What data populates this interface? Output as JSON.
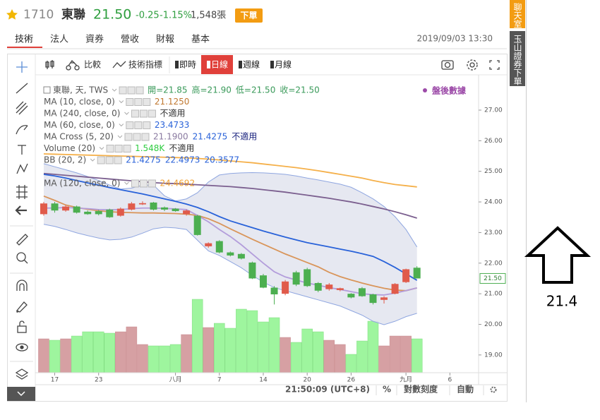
{
  "header": {
    "code": "1710",
    "name": "東聯",
    "price": "21.50",
    "change": "-0.25",
    "change_pct": "-1.15%",
    "volume": "1,548張",
    "order_button": "下單"
  },
  "tabs": [
    "技術",
    "法人",
    "資券",
    "營收",
    "財報",
    "基本"
  ],
  "timestamp": "2019/09/03 13:30",
  "toolbar": {
    "compare": "比較",
    "indicators": "技術指標",
    "periods": [
      "即時",
      "日線",
      "週線",
      "月線"
    ]
  },
  "legend": [
    {
      "label": "東聯, 天, TWS",
      "items": [
        "開=21.85",
        "高=21.90",
        "低=21.50",
        "收=21.50"
      ],
      "colors": [
        "#3a9a5a",
        "#3a9a5a",
        "#3a9a5a",
        "#3a9a5a"
      ]
    },
    {
      "label": "MA (10, close, 0)",
      "items": [
        "21.1250"
      ],
      "colors": [
        "#c07830"
      ]
    },
    {
      "label": "MA (240, close, 0)",
      "items": [
        "不適用"
      ],
      "colors": [
        "#333333"
      ]
    },
    {
      "label": "MA (60, close, 0)",
      "items": [
        "23.4733"
      ],
      "colors": [
        "#2962d9"
      ]
    },
    {
      "label": "MA Cross (5, 20)",
      "items": [
        "21.1900",
        "21.4275",
        "不適用"
      ],
      "colors": [
        "#8a7aa0",
        "#2962d9",
        "#1a237e"
      ]
    },
    {
      "label": "Volume (20)",
      "items": [
        "1.548K",
        "不適用"
      ],
      "colors": [
        "#2ecc40",
        "#333333"
      ]
    },
    {
      "label": "BB (20, 2)",
      "items": [
        "21.4275",
        "22.4973",
        "20.3577"
      ],
      "colors": [
        "#2962d9",
        "#2962d9",
        "#2962d9"
      ]
    },
    {
      "label": "MA (120, close, 0)",
      "items": [
        "24.4692"
      ],
      "colors": [
        "#f0a030"
      ]
    }
  ],
  "after_hours": "盤後數據",
  "price_marker": "21.50",
  "chart_data": {
    "type": "candlestick",
    "open": [
      23.6,
      23.95,
      23.72,
      23.85,
      23.68,
      23.7,
      23.75,
      23.55,
      23.75,
      23.92,
      23.98,
      23.82,
      23.78,
      23.6,
      23.55,
      22.55,
      22.72,
      22.35,
      22.3,
      22.02,
      21.6,
      21.2,
      21.0,
      21.7,
      21.8,
      21.35,
      21.15,
      21.12,
      21.0,
      21.18,
      20.98,
      20.8,
      21.0,
      21.38,
      21.85
    ],
    "high": [
      24.0,
      24.0,
      23.9,
      23.88,
      23.72,
      23.74,
      23.78,
      23.82,
      24.0,
      24.02,
      24.0,
      23.85,
      23.8,
      23.75,
      23.58,
      22.68,
      22.75,
      22.38,
      22.33,
      22.05,
      21.65,
      21.25,
      21.45,
      21.75,
      21.85,
      21.38,
      21.35,
      21.2,
      21.02,
      21.22,
      21.0,
      20.92,
      21.35,
      21.82,
      21.9
    ],
    "low": [
      23.55,
      23.65,
      23.68,
      23.62,
      23.58,
      23.56,
      23.48,
      23.52,
      23.72,
      23.9,
      23.72,
      23.7,
      23.68,
      23.55,
      22.9,
      22.5,
      22.32,
      22.22,
      22.12,
      21.48,
      21.18,
      20.65,
      20.95,
      21.25,
      21.22,
      21.05,
      21.1,
      21.08,
      20.85,
      20.9,
      20.65,
      20.68,
      20.98,
      21.35,
      21.5
    ],
    "close": [
      23.95,
      23.72,
      23.85,
      23.65,
      23.6,
      23.6,
      23.5,
      23.78,
      23.95,
      23.96,
      23.75,
      23.75,
      23.7,
      23.72,
      22.92,
      22.65,
      22.35,
      22.25,
      22.15,
      21.5,
      21.2,
      20.98,
      21.4,
      21.3,
      21.25,
      21.1,
      21.3,
      21.18,
      20.88,
      20.92,
      20.7,
      20.88,
      21.32,
      21.8,
      21.5
    ],
    "volume": [
      1548,
      1484,
      1548,
      1677,
      1870,
      1870,
      1806,
      1870,
      2096,
      1290,
      1226,
      1226,
      1290,
      1742,
      3354,
      2064,
      2258,
      2032,
      2903,
      2838,
      2322,
      2516,
      1613,
      1387,
      2000,
      1870,
      1484,
      1290,
      839,
      1451,
      2354,
      1226,
      1677,
      1677,
      1548
    ],
    "volume_lim": [
      0,
      5000
    ],
    "up_color": "#e05b4b",
    "down_color": "#4caf50",
    "up_volume_color": "#d6a0a3",
    "down_volume_color": "#9ef59e",
    "bands": {
      "color": "#8fa6e0",
      "fill": "#e2e4ef",
      "upper": [
        25.25,
        25.15,
        25.05,
        24.95,
        24.83,
        24.7,
        24.55,
        24.42,
        24.45,
        24.55,
        24.55,
        24.2,
        24.03,
        24.1,
        24.3,
        24.65,
        24.88,
        24.93,
        24.95,
        24.96,
        24.95,
        24.93,
        24.9,
        24.85,
        24.78,
        24.72,
        24.65,
        24.58,
        24.48,
        24.3,
        24.1,
        23.85,
        23.52,
        23.1,
        22.53
      ],
      "lower": [
        23.27,
        23.2,
        23.1,
        22.99,
        22.9,
        22.82,
        22.76,
        22.78,
        22.85,
        22.98,
        23.12,
        23.17,
        23.15,
        23.1,
        22.75,
        22.4,
        22.25,
        22.05,
        21.85,
        21.6,
        21.38,
        21.2,
        21.1,
        21.0,
        20.9,
        20.8,
        20.7,
        20.6,
        20.45,
        20.3,
        20.1,
        19.99,
        20.1,
        20.25,
        20.36
      ]
    },
    "lines": [
      {
        "color": "#f5b04a",
        "values": [
          25.57,
          25.56,
          25.55,
          25.54,
          25.53,
          25.52,
          25.51,
          25.5,
          25.49,
          25.48,
          25.47,
          25.46,
          25.45,
          25.44,
          25.42,
          25.4,
          25.37,
          25.34,
          25.31,
          25.28,
          25.24,
          25.2,
          25.16,
          25.12,
          25.07,
          25.02,
          24.96,
          24.9,
          24.84,
          24.78,
          24.7,
          24.63,
          24.57,
          24.53,
          24.49
        ]
      },
      {
        "color": "#7b5f8f",
        "values": [
          24.93,
          24.9,
          24.87,
          24.84,
          24.81,
          24.78,
          24.75,
          24.72,
          24.69,
          24.66,
          24.63,
          24.61,
          24.6,
          24.58,
          24.56,
          24.54,
          24.52,
          24.5,
          24.47,
          24.44,
          24.4,
          24.36,
          24.32,
          24.27,
          24.22,
          24.17,
          24.12,
          24.06,
          24.0,
          23.93,
          23.85,
          23.77,
          23.68,
          23.58,
          23.47
        ]
      },
      {
        "color": "#2962d9",
        "values": [
          24.9,
          24.85,
          24.78,
          24.7,
          24.62,
          24.55,
          24.47,
          24.4,
          24.33,
          24.26,
          24.18,
          24.1,
          24.02,
          23.93,
          23.82,
          23.68,
          23.52,
          23.38,
          23.27,
          23.16,
          23.05,
          22.95,
          22.85,
          22.76,
          22.67,
          22.6,
          22.53,
          22.46,
          22.39,
          22.31,
          22.22,
          22.05,
          21.86,
          21.65,
          21.44
        ]
      },
      {
        "color": "#d9955a",
        "values": [
          24.19,
          24.05,
          23.9,
          23.82,
          23.76,
          23.71,
          23.68,
          23.66,
          23.65,
          23.64,
          23.64,
          23.63,
          23.62,
          23.6,
          23.56,
          23.45,
          23.3,
          23.12,
          22.95,
          22.78,
          22.62,
          22.46,
          22.3,
          22.16,
          22.02,
          21.88,
          21.7,
          21.56,
          21.45,
          21.35,
          21.26,
          21.18,
          21.12,
          21.1,
          21.19
        ]
      },
      {
        "color": "#b39ddb",
        "values": [
          23.8,
          23.8,
          23.82,
          23.8,
          23.78,
          23.75,
          23.74,
          23.75,
          23.78,
          23.8,
          23.8,
          23.79,
          23.77,
          23.75,
          23.56,
          23.35,
          23.1,
          22.87,
          22.6,
          22.3,
          22.0,
          21.72,
          21.55,
          21.45,
          21.35,
          21.28,
          21.2,
          21.14,
          21.07,
          21.0,
          20.97,
          20.96,
          21.02,
          21.1,
          21.19
        ]
      }
    ],
    "xlim": [
      -0.77,
      38.2
    ],
    "xticks": [
      {
        "value": 1,
        "label": "17"
      },
      {
        "value": 5,
        "label": "23"
      },
      {
        "value": 12,
        "label": "八月"
      },
      {
        "value": 16,
        "label": "7"
      },
      {
        "value": 20,
        "label": "14"
      },
      {
        "value": 24,
        "label": "20"
      },
      {
        "value": 28,
        "label": "26"
      },
      {
        "value": 33,
        "label": "九月"
      },
      {
        "value": 37,
        "label": "6"
      }
    ],
    "ylim": [
      18.42,
      27.83
    ],
    "yticks": [
      {
        "value": 27,
        "label": "27.00"
      },
      {
        "value": 26,
        "label": "26.00"
      },
      {
        "value": 25,
        "label": "25.00"
      },
      {
        "value": 24,
        "label": "24.00"
      },
      {
        "value": 23,
        "label": "23.00"
      },
      {
        "value": 22,
        "label": "22.00"
      },
      {
        "value": 21,
        "label": "21.00"
      },
      {
        "value": 20,
        "label": "20.00"
      },
      {
        "value": 19,
        "label": "19.00"
      }
    ]
  },
  "bottom_bar": {
    "clock": "21:50:09 (UTC+8)",
    "percent": "%",
    "log_scale": "對數刻度",
    "auto": "自動"
  },
  "side_tabs": [
    "聊天室",
    "玉山證券下單"
  ],
  "annotation": "21.4"
}
